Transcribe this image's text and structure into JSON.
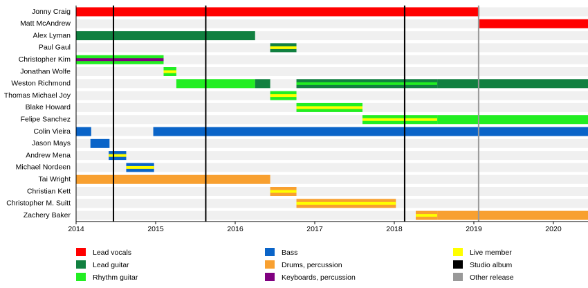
{
  "chart_data": {
    "type": "timeline",
    "xlim": [
      2014,
      2020.435
    ],
    "xticks": [
      2014,
      2015,
      2016,
      2017,
      2018,
      2019,
      2020
    ],
    "roles": [
      {
        "name": "Lead vocals",
        "color": "#ff0000"
      },
      {
        "name": "Lead guitar",
        "color": "#118040"
      },
      {
        "name": "Rhythm guitar",
        "color": "#22ee22"
      },
      {
        "name": "Bass",
        "color": "#0a64c8"
      },
      {
        "name": "Drums, percussion",
        "color": "#f8a030"
      },
      {
        "name": "Keyboards, percussion",
        "color": "#800080"
      },
      {
        "name": "Live member",
        "color": "#ffff00"
      }
    ],
    "markers": [
      {
        "name": "Studio album",
        "color": "#000000",
        "x": [
          2014.47,
          2015.63,
          2018.13
        ]
      },
      {
        "name": "Other release",
        "color": "#999999",
        "x": [
          2019.06
        ]
      }
    ],
    "members": [
      {
        "name": "Jonny Craig",
        "spans": [
          {
            "start": 2014,
            "end": 2019.07,
            "role": 0
          }
        ]
      },
      {
        "name": "Matt McAndrew",
        "spans": [
          {
            "start": 2019.07,
            "end": 2020.435,
            "role": 0
          }
        ]
      },
      {
        "name": "Alex Lyman",
        "spans": [
          {
            "start": 2014,
            "end": 2016.25,
            "role": 1
          }
        ]
      },
      {
        "name": "Paul Gaul",
        "spans": [
          {
            "start": 2016.44,
            "end": 2016.77,
            "role": 1,
            "stripe": 6
          }
        ]
      },
      {
        "name": "Christopher Kim",
        "spans": [
          {
            "start": 2014,
            "end": 2015.1,
            "role": 2,
            "stripe": 5
          }
        ]
      },
      {
        "name": "Jonathan Wolfe",
        "spans": [
          {
            "start": 2015.1,
            "end": 2015.26,
            "role": 2,
            "stripe": 6
          }
        ]
      },
      {
        "name": "Weston Richmond",
        "spans": [
          {
            "start": 2015.26,
            "end": 2016.25,
            "role": 2
          },
          {
            "start": 2016.25,
            "end": 2016.44,
            "role": 1
          },
          {
            "start": 2016.77,
            "end": 2018.54,
            "role": 1,
            "stripe": 2
          },
          {
            "start": 2018.54,
            "end": 2020.435,
            "role": 1
          }
        ]
      },
      {
        "name": "Thomas Michael Joy",
        "spans": [
          {
            "start": 2016.44,
            "end": 2016.77,
            "role": 2,
            "stripe": 6
          }
        ]
      },
      {
        "name": "Blake Howard",
        "spans": [
          {
            "start": 2016.77,
            "end": 2017.6,
            "role": 2,
            "stripe": 6
          }
        ]
      },
      {
        "name": "Felipe Sanchez",
        "spans": [
          {
            "start": 2017.6,
            "end": 2018.54,
            "role": 2,
            "stripe": 6
          },
          {
            "start": 2018.54,
            "end": 2020.435,
            "role": 2
          }
        ]
      },
      {
        "name": "Colin Vieira",
        "spans": [
          {
            "start": 2014,
            "end": 2014.19,
            "role": 3
          },
          {
            "start": 2014.97,
            "end": 2020.435,
            "role": 3
          }
        ]
      },
      {
        "name": "Jason Mays",
        "spans": [
          {
            "start": 2014.18,
            "end": 2014.42,
            "role": 3
          }
        ]
      },
      {
        "name": "Andrew Mena",
        "spans": [
          {
            "start": 2014.41,
            "end": 2014.63,
            "role": 3,
            "stripe": 6
          }
        ]
      },
      {
        "name": "Michael Nordeen",
        "spans": [
          {
            "start": 2014.63,
            "end": 2014.98,
            "role": 3,
            "stripe": 6
          }
        ]
      },
      {
        "name": "Tai Wright",
        "spans": [
          {
            "start": 2014,
            "end": 2016.44,
            "role": 4
          }
        ]
      },
      {
        "name": "Christian Kett",
        "spans": [
          {
            "start": 2016.44,
            "end": 2016.77,
            "role": 4,
            "stripe": 6
          }
        ]
      },
      {
        "name": "Christopher M. Suitt",
        "spans": [
          {
            "start": 2016.77,
            "end": 2018.02,
            "role": 4,
            "stripe": 6
          }
        ]
      },
      {
        "name": "Zachery Baker",
        "spans": [
          {
            "start": 2018.27,
            "end": 2018.54,
            "role": 4,
            "stripe": 6
          },
          {
            "start": 2018.54,
            "end": 2020.435,
            "role": 4
          }
        ]
      }
    ]
  }
}
